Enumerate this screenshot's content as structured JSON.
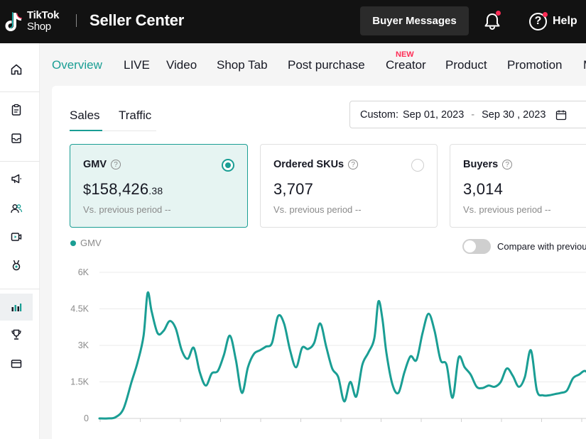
{
  "header": {
    "logo_line1": "TikTok",
    "logo_line2": "Shop",
    "title": "Seller Center",
    "buyer_messages": "Buyer Messages",
    "help": "Help",
    "help_glyph": "?"
  },
  "sidebar": {
    "items": [
      {
        "icon": "home-icon"
      },
      {
        "icon": "orders-icon"
      },
      {
        "icon": "inbox-icon"
      },
      {
        "icon": "megaphone-icon"
      },
      {
        "icon": "users-icon"
      },
      {
        "icon": "video-icon"
      },
      {
        "icon": "medal-icon"
      },
      {
        "icon": "analytics-icon",
        "active": true
      },
      {
        "icon": "trophy-icon"
      },
      {
        "icon": "card-icon"
      }
    ]
  },
  "tabs": {
    "items": [
      "Overview",
      "LIVE",
      "Video",
      "Shop Tab",
      "Post purchase",
      "Creator",
      "Product",
      "Promotion",
      "M"
    ],
    "active": "Overview",
    "new_badge": "NEW"
  },
  "subtabs": {
    "sales": "Sales",
    "traffic": "Traffic"
  },
  "date_range": {
    "prefix": "Custom:",
    "start": "Sep 01, 2023",
    "separator": "-",
    "end": "Sep 30 , 2023"
  },
  "metrics": [
    {
      "label": "GMV",
      "currency": "$",
      "value_main": "158,426",
      "value_cents": ".38",
      "sub": "Vs. previous period  --",
      "selected": true
    },
    {
      "label": "Ordered SKUs",
      "value_main": "3,707",
      "sub": "Vs. previous period  --",
      "selected": false
    },
    {
      "label": "Buyers",
      "value_main": "3,014",
      "sub": "Vs. previous period  --",
      "selected": false
    }
  ],
  "legend": {
    "label": "GMV"
  },
  "compare": {
    "label": "Compare with previous"
  },
  "colors": {
    "accent": "#1a9e94",
    "badge": "#fe2c55"
  },
  "chart_data": {
    "type": "line",
    "series": [
      {
        "name": "GMV"
      }
    ],
    "y_ticks": [
      "0",
      "1.5K",
      "3K",
      "4.5K",
      "6K"
    ],
    "ylim": [
      0,
      6000
    ],
    "grid": true,
    "points": [
      [
        0,
        0
      ],
      [
        0.2,
        0
      ],
      [
        0.4,
        50
      ],
      [
        0.6,
        400
      ],
      [
        0.8,
        1500
      ],
      [
        0.95,
        2300
      ],
      [
        1.1,
        3400
      ],
      [
        1.2,
        5150
      ],
      [
        1.3,
        4400
      ],
      [
        1.45,
        3500
      ],
      [
        1.6,
        3600
      ],
      [
        1.75,
        4000
      ],
      [
        1.9,
        3700
      ],
      [
        2.05,
        2800
      ],
      [
        2.2,
        2450
      ],
      [
        2.35,
        2900
      ],
      [
        2.5,
        1900
      ],
      [
        2.65,
        1350
      ],
      [
        2.8,
        1850
      ],
      [
        2.95,
        1950
      ],
      [
        3.1,
        2600
      ],
      [
        3.25,
        3400
      ],
      [
        3.4,
        2400
      ],
      [
        3.55,
        1050
      ],
      [
        3.7,
        2100
      ],
      [
        3.85,
        2650
      ],
      [
        4.0,
        2800
      ],
      [
        4.15,
        2950
      ],
      [
        4.3,
        3100
      ],
      [
        4.45,
        4200
      ],
      [
        4.6,
        3900
      ],
      [
        4.75,
        2800
      ],
      [
        4.9,
        2100
      ],
      [
        5.05,
        2900
      ],
      [
        5.2,
        2850
      ],
      [
        5.35,
        3100
      ],
      [
        5.5,
        3900
      ],
      [
        5.65,
        2950
      ],
      [
        5.8,
        2050
      ],
      [
        5.95,
        1700
      ],
      [
        6.1,
        700
      ],
      [
        6.25,
        1500
      ],
      [
        6.4,
        900
      ],
      [
        6.55,
        2200
      ],
      [
        6.7,
        2700
      ],
      [
        6.85,
        3300
      ],
      [
        6.95,
        4800
      ],
      [
        7.05,
        4100
      ],
      [
        7.15,
        2700
      ],
      [
        7.3,
        1400
      ],
      [
        7.45,
        1050
      ],
      [
        7.6,
        1900
      ],
      [
        7.75,
        2550
      ],
      [
        7.9,
        2400
      ],
      [
        8.05,
        3500
      ],
      [
        8.2,
        4300
      ],
      [
        8.35,
        3600
      ],
      [
        8.5,
        2400
      ],
      [
        8.65,
        2200
      ],
      [
        8.8,
        850
      ],
      [
        8.95,
        2500
      ],
      [
        9.1,
        2100
      ],
      [
        9.25,
        1800
      ],
      [
        9.4,
        1300
      ],
      [
        9.55,
        1250
      ],
      [
        9.7,
        1350
      ],
      [
        9.85,
        1300
      ],
      [
        10.0,
        1500
      ],
      [
        10.15,
        2050
      ],
      [
        10.3,
        1750
      ],
      [
        10.45,
        1300
      ],
      [
        10.6,
        1700
      ],
      [
        10.75,
        2800
      ],
      [
        10.9,
        1150
      ],
      [
        11.05,
        950
      ],
      [
        11.2,
        950
      ],
      [
        11.35,
        1000
      ],
      [
        11.5,
        1050
      ],
      [
        11.65,
        1150
      ],
      [
        11.8,
        1650
      ],
      [
        11.95,
        1800
      ],
      [
        12.1,
        1950
      ],
      [
        12.25,
        1700
      ],
      [
        12.4,
        1800
      ],
      [
        12.55,
        1900
      ],
      [
        12.7,
        1850
      ],
      [
        12.85,
        1950
      ],
      [
        13.0,
        2000
      ],
      [
        13.15,
        1900
      ],
      [
        13.3,
        1700
      ],
      [
        13.45,
        1450
      ],
      [
        13.6,
        1350
      ],
      [
        13.75,
        1550
      ],
      [
        13.9,
        1800
      ],
      [
        14.05,
        1700
      ],
      [
        14.2,
        1100
      ],
      [
        14.35,
        1500
      ],
      [
        14.5,
        1050
      ],
      [
        14.65,
        1350
      ],
      [
        14.8,
        1500
      ],
      [
        14.95,
        1600
      ],
      [
        15.1,
        1750
      ]
    ]
  }
}
